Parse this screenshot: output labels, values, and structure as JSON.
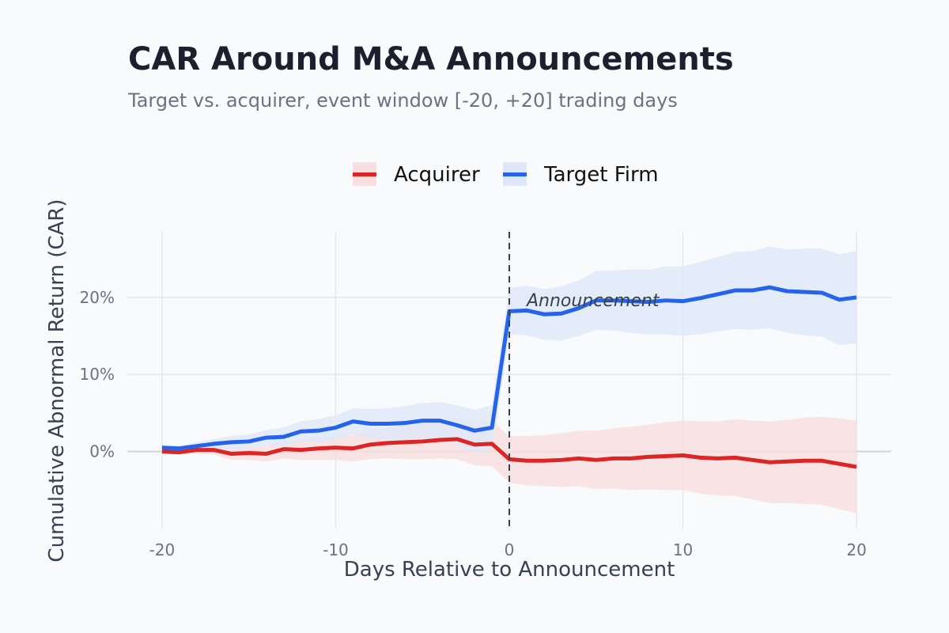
{
  "chart_data": {
    "type": "line",
    "title": "CAR Around M&A Announcements",
    "subtitle": "Target vs. acquirer, event window [-20, +20] trading days",
    "xlabel": "Days Relative to Announcement",
    "ylabel": "Cumulative Abnormal Return (CAR)",
    "xlim": [
      -22,
      22
    ],
    "ylim": [
      -10,
      28.5
    ],
    "xticks": [
      -20,
      -10,
      0,
      10,
      20
    ],
    "xtick_labels": [
      "-20",
      "-10",
      "0",
      "10",
      "20"
    ],
    "yticks": [
      0,
      10,
      20
    ],
    "ytick_labels": [
      "0%",
      "10%",
      "20%"
    ],
    "grid": true,
    "legend_position": "top-center",
    "annotation": {
      "x": 0,
      "text": "Announcement",
      "style": "dashed vertical line"
    },
    "x": [
      -20,
      -19,
      -18,
      -17,
      -16,
      -15,
      -14,
      -13,
      -12,
      -11,
      -10,
      -9,
      -8,
      -7,
      -6,
      -5,
      -4,
      -3,
      -2,
      -1,
      0,
      1,
      2,
      3,
      4,
      5,
      6,
      7,
      8,
      9,
      10,
      11,
      12,
      13,
      14,
      15,
      16,
      17,
      18,
      19,
      20
    ],
    "ci_half_width": [
      0.2,
      0.3,
      0.5,
      0.6,
      0.8,
      0.9,
      1.0,
      1.2,
      1.3,
      1.5,
      1.6,
      1.7,
      1.9,
      2.0,
      2.2,
      2.3,
      2.4,
      2.6,
      2.7,
      2.9,
      3.0,
      3.2,
      3.3,
      3.5,
      3.6,
      3.8,
      3.9,
      4.1,
      4.2,
      4.4,
      4.5,
      4.7,
      4.8,
      5.0,
      5.1,
      5.3,
      5.4,
      5.6,
      5.7,
      5.9,
      6.0
    ],
    "series": [
      {
        "name": "Acquirer",
        "color": "#dc2626",
        "band_color": "#f8dfe1",
        "values": [
          0,
          -0.1,
          0.2,
          0.2,
          -0.3,
          -0.2,
          -0.3,
          0.3,
          0.2,
          0.4,
          0.5,
          0.4,
          0.9,
          1.1,
          1.2,
          1.3,
          1.5,
          1.6,
          0.9,
          1.0,
          -1.0,
          -1.2,
          -1.2,
          -1.1,
          -0.9,
          -1.1,
          -0.9,
          -0.9,
          -0.7,
          -0.6,
          -0.5,
          -0.8,
          -0.9,
          -0.8,
          -1.1,
          -1.4,
          -1.3,
          -1.2,
          -1.2,
          -1.6,
          -2.0
        ]
      },
      {
        "name": "Target Firm",
        "color": "#2563eb",
        "band_color": "#e0e7f8",
        "values": [
          0.5,
          0.4,
          0.7,
          1.0,
          1.2,
          1.3,
          1.8,
          1.9,
          2.6,
          2.7,
          3.1,
          3.9,
          3.6,
          3.6,
          3.7,
          4.0,
          4.0,
          3.4,
          2.7,
          3.1,
          18.2,
          18.3,
          17.8,
          17.9,
          18.6,
          19.6,
          19.6,
          19.5,
          19.4,
          19.6,
          19.5,
          19.9,
          20.4,
          20.9,
          20.9,
          21.3,
          20.8,
          20.7,
          20.6,
          19.7,
          20.0
        ]
      }
    ]
  }
}
